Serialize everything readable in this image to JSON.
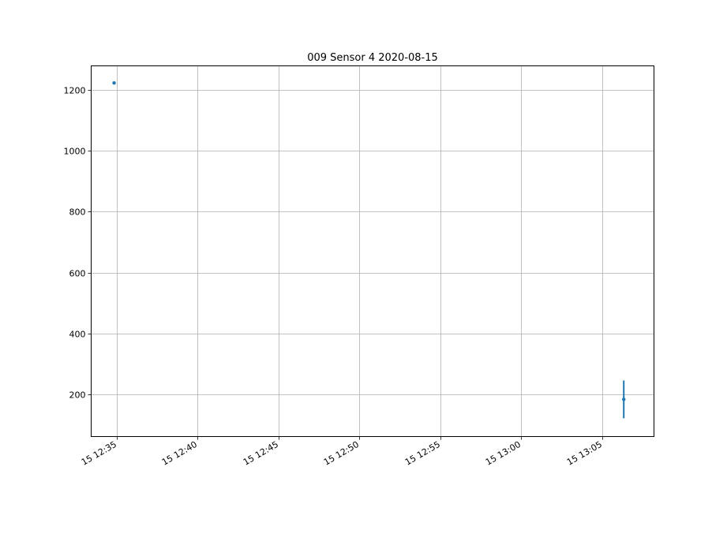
{
  "chart_data": {
    "type": "scatter",
    "title": "009 Sensor 4 2020-08-15",
    "xlabel": "",
    "ylabel": "",
    "x_axis_type": "time",
    "xlim": [
      "2020-08-15 12:33:26",
      "2020-08-15 13:08:12"
    ],
    "ylim": [
      62,
      1278
    ],
    "x_ticks": [
      {
        "value": "2020-08-15 12:35:00",
        "label": "15 12:35"
      },
      {
        "value": "2020-08-15 12:40:00",
        "label": "15 12:40"
      },
      {
        "value": "2020-08-15 12:45:00",
        "label": "15 12:45"
      },
      {
        "value": "2020-08-15 12:50:00",
        "label": "15 12:50"
      },
      {
        "value": "2020-08-15 12:55:00",
        "label": "15 12:55"
      },
      {
        "value": "2020-08-15 13:00:00",
        "label": "15 13:00"
      },
      {
        "value": "2020-08-15 13:05:00",
        "label": "15 13:05"
      }
    ],
    "y_ticks": [
      200,
      400,
      600,
      800,
      1000,
      1200
    ],
    "grid": true,
    "series": [
      {
        "color": "#1f77b4",
        "points": [
          {
            "x": "2020-08-15 12:34:51",
            "y": 1222,
            "ylow": 1222,
            "yhigh": 1222
          },
          {
            "x": "2020-08-15 13:06:20",
            "y": 184,
            "ylow": 122,
            "yhigh": 246
          }
        ]
      }
    ]
  }
}
